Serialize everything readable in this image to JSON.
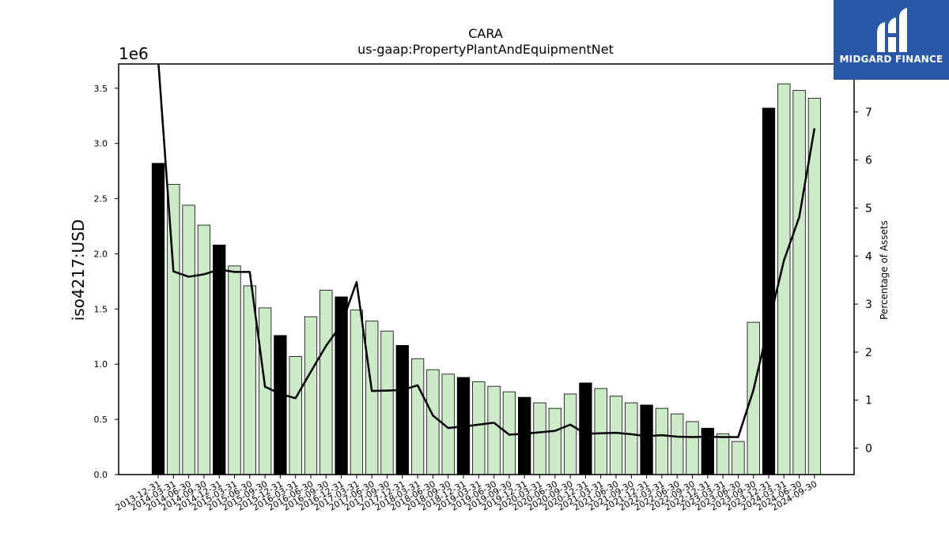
{
  "chart_data": {
    "type": "bar",
    "title": "CARA",
    "subtitle": "us-gaap:PropertyPlantAndEquipmentNet",
    "ylabel": "iso4217:USD",
    "y_offset_label": "1e6",
    "y2label": "Percentage of Assets",
    "ylim": [
      0,
      3720000
    ],
    "y2lim": [
      -0.55,
      8.0
    ],
    "yticks": [
      "0.0",
      "0.5",
      "1.0",
      "1.5",
      "2.0",
      "2.5",
      "3.0",
      "3.5"
    ],
    "y2ticks": [
      "0",
      "1",
      "2",
      "3",
      "4",
      "5",
      "6",
      "7"
    ],
    "categories": [
      "2013-12-31",
      "2014-03-31",
      "2014-06-30",
      "2014-09-30",
      "2014-12-31",
      "2015-03-31",
      "2015-06-30",
      "2015-09-30",
      "2015-12-31",
      "2016-03-31",
      "2016-06-30",
      "2016-09-30",
      "2016-12-31",
      "2017-03-31",
      "2017-06-30",
      "2017-09-30",
      "2017-12-31",
      "2018-03-31",
      "2018-06-30",
      "2018-09-30",
      "2018-12-31",
      "2019-03-31",
      "2019-06-30",
      "2019-09-30",
      "2019-12-31",
      "2020-03-31",
      "2020-06-30",
      "2020-09-30",
      "2020-12-31",
      "2021-03-31",
      "2021-06-30",
      "2021-09-30",
      "2021-12-31",
      "2022-03-31",
      "2022-06-30",
      "2022-09-30",
      "2022-12-31",
      "2023-03-31",
      "2023-06-30",
      "2023-09-30",
      "2023-12-31",
      "2024-03-31",
      "2024-06-30",
      "2024-09-30"
    ],
    "series": [
      {
        "kind": "bar",
        "values": [
          2820000,
          2630000,
          2440000,
          2260000,
          2080000,
          1890000,
          1710000,
          1510000,
          1260000,
          1070000,
          1430000,
          1670000,
          1610000,
          1490000,
          1390000,
          1300000,
          1170000,
          1050000,
          950000,
          910000,
          880000,
          840000,
          800000,
          750000,
          700000,
          650000,
          600000,
          730000,
          830000,
          780000,
          710000,
          650000,
          630000,
          600000,
          550000,
          480000,
          420000,
          370000,
          300000,
          1380000,
          3320000,
          3540000,
          3480000,
          3410000
        ],
        "highlight": [
          true,
          false,
          false,
          false,
          true,
          false,
          false,
          false,
          true,
          false,
          false,
          false,
          true,
          false,
          false,
          false,
          true,
          false,
          false,
          false,
          true,
          false,
          false,
          false,
          true,
          false,
          false,
          false,
          true,
          false,
          false,
          false,
          true,
          false,
          false,
          false,
          true,
          false,
          false,
          false,
          true,
          false,
          false,
          false
        ]
      },
      {
        "kind": "line",
        "axis": "right",
        "values": [
          8.1,
          3.68,
          3.57,
          3.62,
          3.72,
          3.67,
          3.67,
          1.28,
          1.13,
          1.04,
          1.59,
          2.13,
          2.57,
          3.46,
          1.19,
          1.2,
          1.21,
          1.31,
          0.68,
          0.42,
          0.45,
          0.49,
          0.53,
          0.28,
          0.3,
          0.33,
          0.36,
          0.49,
          0.3,
          0.31,
          0.32,
          0.29,
          0.25,
          0.27,
          0.24,
          0.23,
          0.24,
          0.23,
          0.23,
          1.21,
          2.58,
          3.91,
          4.81,
          6.66
        ]
      }
    ],
    "colors": {
      "bar": "#cce9c8",
      "bar_highlight": "#000000",
      "bar_edge": "#000000",
      "line": "#000000"
    }
  },
  "logo": {
    "text": "MIDGARD FINANCE",
    "background": "#2a57a8"
  }
}
